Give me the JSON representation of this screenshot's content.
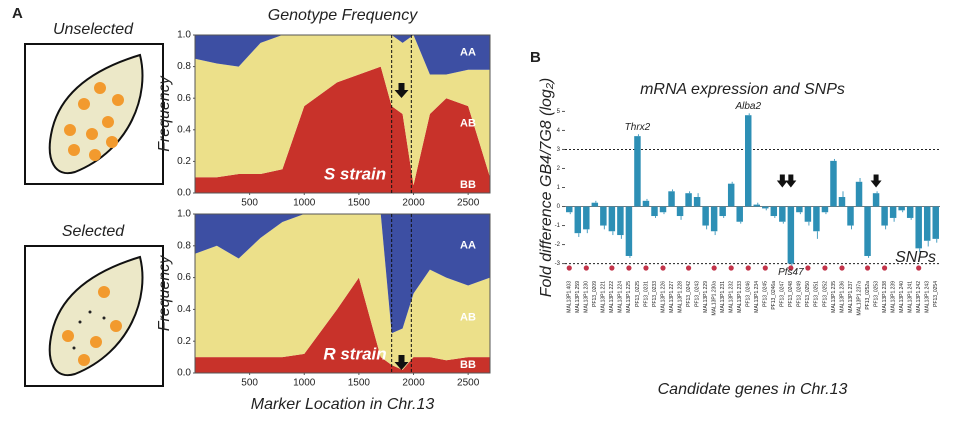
{
  "panels": {
    "a_label": "A",
    "b_label": "B",
    "unselected": "Unselected",
    "selected": "Selected"
  },
  "chart_data": [
    {
      "type": "stacked-area",
      "title": "Genotype Frequency",
      "y_label": "Frequency",
      "annotation": "S strain",
      "x": [
        0,
        200,
        400,
        600,
        800,
        1000,
        1300,
        1500,
        1700,
        1800,
        1900,
        2000,
        2150,
        2300,
        2500,
        2700
      ],
      "series": [
        {
          "name": "BB",
          "color": "#c8322a",
          "values": [
            0.1,
            0.1,
            0.12,
            0.12,
            0.15,
            0.55,
            0.7,
            0.75,
            0.8,
            0.55,
            0.5,
            0.05,
            0.5,
            0.6,
            0.55,
            0.1
          ]
        },
        {
          "name": "AB",
          "color": "#ece08a",
          "values": [
            0.75,
            0.72,
            0.68,
            0.83,
            0.85,
            0.45,
            0.3,
            0.25,
            0.2,
            0.45,
            0.45,
            0.95,
            0.25,
            0.15,
            0.23,
            0.68
          ]
        },
        {
          "name": "AA",
          "color": "#3d4fa3",
          "values": [
            0.15,
            0.18,
            0.2,
            0.05,
            0,
            0,
            0,
            0,
            0,
            0,
            0.05,
            0,
            0.25,
            0.25,
            0.22,
            0.22
          ]
        }
      ],
      "region": [
        1800,
        1980
      ],
      "xlim": [
        0,
        2700
      ],
      "xticks": [
        500,
        1000,
        1500,
        2000,
        2500
      ],
      "ylim": [
        0,
        1
      ],
      "yticks": [
        {
          "value": 0,
          "label": "0.0"
        },
        {
          "value": 0.2,
          "label": "0.2"
        },
        {
          "value": 0.4,
          "label": "0.4"
        },
        {
          "value": 0.6,
          "label": "0.6"
        },
        {
          "value": 0.8,
          "label": "0.8"
        },
        {
          "value": 1,
          "label": "1.0"
        }
      ]
    },
    {
      "type": "stacked-area",
      "y_label": "Frequency",
      "x_label": "Marker Location in Chr.13",
      "annotation": "R strain",
      "x": [
        0,
        200,
        400,
        600,
        800,
        1000,
        1300,
        1500,
        1700,
        1800,
        1900,
        2000,
        2150,
        2300,
        2500,
        2700
      ],
      "series": [
        {
          "name": "BB",
          "color": "#c8322a",
          "values": [
            0.1,
            0.1,
            0.1,
            0.1,
            0.1,
            0.12,
            0.4,
            0.6,
            0.1,
            0.05,
            0.02,
            0.1,
            0.1,
            0.08,
            0.1,
            0.1
          ]
        },
        {
          "name": "AB",
          "color": "#ece08a",
          "values": [
            0.65,
            0.7,
            0.62,
            0.75,
            0.85,
            0.88,
            0.6,
            0.4,
            0.9,
            0.2,
            0.26,
            0.4,
            0.55,
            0.52,
            0.45,
            0.5
          ]
        },
        {
          "name": "AA",
          "color": "#3d4fa3",
          "values": [
            0.25,
            0.2,
            0.28,
            0.15,
            0.05,
            0,
            0,
            0,
            0,
            0.75,
            0.72,
            0.5,
            0.35,
            0.4,
            0.45,
            0.4
          ]
        }
      ],
      "region": [
        1800,
        1980
      ],
      "xlim": [
        0,
        2700
      ],
      "xticks": [
        500,
        1000,
        1500,
        2000,
        2500
      ],
      "ylim": [
        0,
        1
      ],
      "yticks": [
        {
          "value": 0,
          "label": "0.0"
        },
        {
          "value": 0.2,
          "label": "0.2"
        },
        {
          "value": 0.4,
          "label": "0.4"
        },
        {
          "value": 0.6,
          "label": "0.6"
        },
        {
          "value": 0.8,
          "label": "0.8"
        },
        {
          "value": 1,
          "label": "1.0"
        }
      ]
    },
    {
      "type": "bar",
      "title": "mRNA expression and SNPs",
      "y_label": "Fold difference GB4/7G8 (log₂)",
      "x_label": "Candidate genes in Chr.13",
      "color": "#2d8fb5",
      "categories": [
        "MAL13P1.403",
        "MAL13P1.259",
        "MAL13P1.230",
        "PF13_0209",
        "MAL13P1.221",
        "MAL13P1.222",
        "MAL13P1.224",
        "MAL13P1.225",
        "PF13_0225",
        "PF13_0231",
        "PF13_0233",
        "MAL13P1.226",
        "MAL13P1.227",
        "MAL13P1.228",
        "PF13_0242",
        "PF13_0243",
        "MAL13P1.229",
        "MAL13P1.230a",
        "MAL13P1.231",
        "MAL13P1.232",
        "MAL13P1.233",
        "PF13_0246",
        "MAL13P1.234",
        "PF13_0245",
        "PF13_0246a",
        "PF13_0247",
        "PF13_0248",
        "PF13_0249",
        "PF13_0250",
        "PF13_0251",
        "PF13_0252",
        "MAL13P1.235",
        "MAL13P1.236",
        "MAL13P1.237",
        "MAL13P1.237a",
        "PF13_0252a",
        "PF13_0253",
        "MAL13P1.238",
        "MAL13P1.239",
        "MAL13P1.240",
        "MAL13P1.241",
        "MAL13P1.242",
        "MAL13P1.243",
        "PF13_0254"
      ],
      "values": [
        -0.3,
        -1.4,
        -1.2,
        0.2,
        -1.0,
        -1.3,
        -1.5,
        -2.6,
        3.7,
        0.3,
        -0.5,
        -0.3,
        0.8,
        -0.5,
        0.7,
        0.5,
        -1.0,
        -1.3,
        -0.5,
        1.2,
        -0.8,
        4.8,
        0.1,
        -0.1,
        -0.5,
        -0.8,
        -3.0,
        -0.3,
        -0.8,
        -1.3,
        -0.3,
        2.4,
        0.5,
        -1.0,
        1.3,
        -2.6,
        0.7,
        -1.0,
        -0.6,
        -0.2,
        -0.6,
        -2.2,
        -1.8,
        -1.7
      ],
      "errors": [
        0.1,
        0.2,
        0.2,
        0.1,
        0.2,
        0.2,
        0.2,
        0.1,
        0.1,
        0.1,
        0.1,
        0.1,
        0.1,
        0.2,
        0.1,
        0.2,
        0.2,
        0.2,
        0.1,
        0.1,
        0.1,
        0.1,
        0.1,
        0.1,
        0.1,
        0.1,
        0.2,
        0.1,
        0.2,
        0.4,
        0.1,
        0.1,
        0.3,
        0.2,
        0.2,
        0.1,
        0.1,
        0.2,
        0.2,
        0.1,
        0.1,
        0.2,
        0.3,
        0.2
      ],
      "annotations": [
        {
          "text": "Thrx2",
          "category": "PF13_0225"
        },
        {
          "text": "Alba2",
          "category": "PF13_0246"
        },
        {
          "text": "Pfs47",
          "category": "PF13_0248"
        }
      ],
      "snps": {
        "label": "SNPs",
        "present": [
          true,
          false,
          true,
          false,
          false,
          true,
          false,
          true,
          false,
          true,
          false,
          true,
          false,
          false,
          true,
          false,
          false,
          true,
          false,
          true,
          false,
          true,
          false,
          true,
          false,
          false,
          true,
          false,
          true,
          false,
          true,
          false,
          true,
          false,
          false,
          true,
          false,
          true,
          false,
          false,
          false,
          true,
          false,
          false
        ]
      },
      "ref_lines": [
        3,
        -3
      ],
      "ylim": [
        -3.6,
        5.6
      ],
      "yticks": [
        -3,
        -2,
        -1,
        0,
        1,
        2,
        3,
        4,
        5
      ]
    }
  ]
}
